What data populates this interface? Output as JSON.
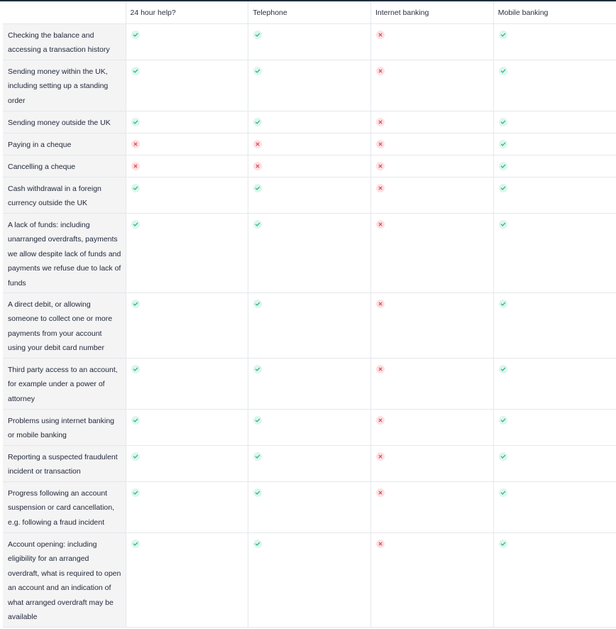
{
  "headers": [
    "24 hour help?",
    "Telephone",
    "Internet banking",
    "Mobile banking"
  ],
  "icons": {
    "yes": "check-icon",
    "no": "cross-icon"
  },
  "colors": {
    "yes_bg": "#dcf6ec",
    "yes_fg": "#2bb57e",
    "no_bg": "#fde1e3",
    "no_fg": "#e0505e"
  },
  "rows": [
    {
      "label": "Checking the balance and accessing a transaction history",
      "values": [
        "yes",
        "yes",
        "no",
        "yes"
      ]
    },
    {
      "label": "Sending money within the UK, including setting up a standing order",
      "values": [
        "yes",
        "yes",
        "no",
        "yes"
      ]
    },
    {
      "label": "Sending money outside the UK",
      "values": [
        "yes",
        "yes",
        "no",
        "yes"
      ]
    },
    {
      "label": "Paying in a cheque",
      "values": [
        "no",
        "no",
        "no",
        "yes"
      ]
    },
    {
      "label": "Cancelling a cheque",
      "values": [
        "no",
        "no",
        "no",
        "yes"
      ]
    },
    {
      "label": "Cash withdrawal in a foreign currency outside the UK",
      "values": [
        "yes",
        "yes",
        "no",
        "yes"
      ]
    },
    {
      "label": "A lack of funds: including unarranged overdrafts, payments we allow despite lack of funds and payments we refuse due to lack of funds",
      "values": [
        "yes",
        "yes",
        "no",
        "yes"
      ]
    },
    {
      "label": "A direct debit, or allowing someone to collect one or more payments from your account using your debit card number",
      "values": [
        "yes",
        "yes",
        "no",
        "yes"
      ]
    },
    {
      "label": "Third party access to an account, for example under a power of attorney",
      "values": [
        "yes",
        "yes",
        "no",
        "yes"
      ]
    },
    {
      "label": "Problems using internet banking or mobile banking",
      "values": [
        "yes",
        "yes",
        "no",
        "yes"
      ]
    },
    {
      "label": "Reporting a suspected fraudulent incident or transaction",
      "values": [
        "yes",
        "yes",
        "no",
        "yes"
      ]
    },
    {
      "label": "Progress following an account suspension or card cancellation, e.g. following a fraud incident",
      "values": [
        "yes",
        "yes",
        "no",
        "yes"
      ]
    },
    {
      "label": "Account opening: including eligibility for an arranged overdraft, what is required to open an account and an indication of what arranged overdraft may be available",
      "values": [
        "yes",
        "yes",
        "no",
        "yes"
      ]
    }
  ]
}
